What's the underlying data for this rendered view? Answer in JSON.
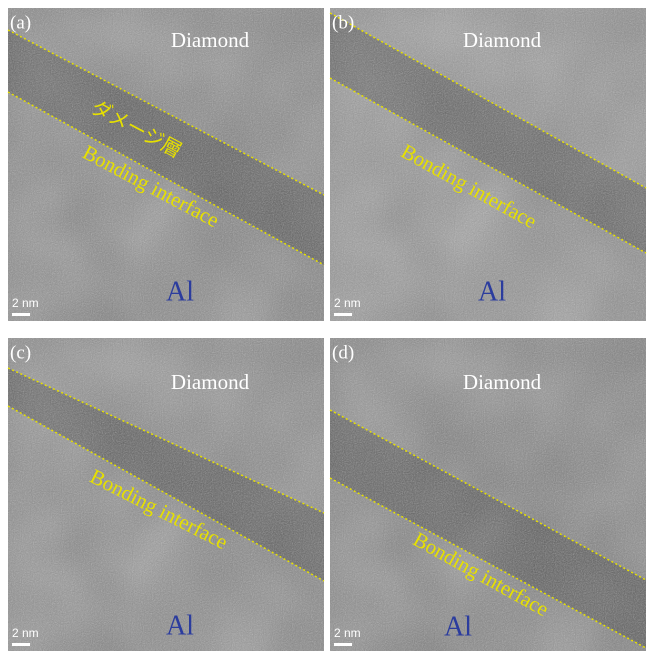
{
  "panels": [
    {
      "label": "(a)",
      "diamond": "Diamond",
      "damage_layer": "ダメージ層",
      "interface": "Bonding interface",
      "metal": "Al",
      "scale_bar": "2 nm"
    },
    {
      "label": "(b)",
      "diamond": "Diamond",
      "interface": "Bonding interface",
      "metal": "Al",
      "scale_bar": "2 nm"
    },
    {
      "label": "(c)",
      "diamond": "Diamond",
      "interface": "Bonding interface",
      "metal": "Al",
      "scale_bar": "2 nm"
    },
    {
      "label": "(d)",
      "diamond": "Diamond",
      "interface": "Bonding interface",
      "metal": "Al",
      "scale_bar": "2 nm"
    }
  ]
}
